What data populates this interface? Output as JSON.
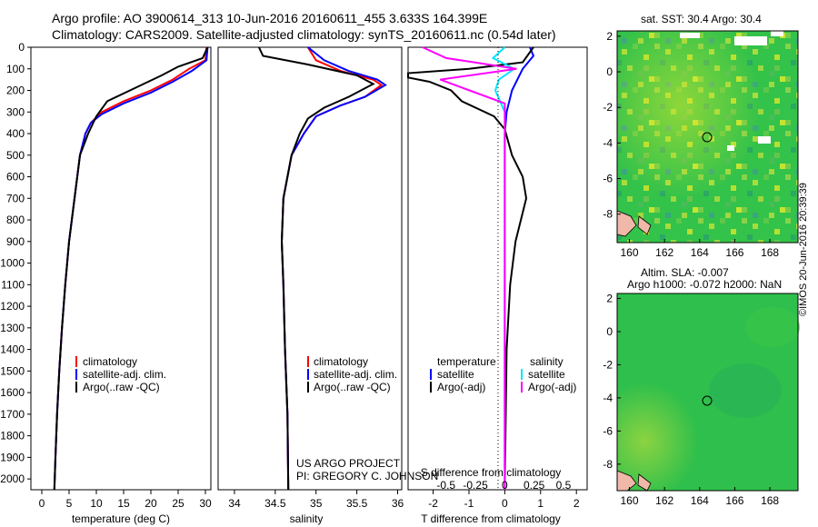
{
  "header": {
    "line1": "Argo profile: AO 3900614_313 10-Jun-2016 20160611_455 3.633S 164.399E",
    "line2": "Climatology: CARS2009. Satellite-adjusted climatology: synTS_20160611.nc (0.54d later)"
  },
  "map_top": {
    "title": "sat. SST: 30.4 Argo: 30.4"
  },
  "map_bottom": {
    "title_1": "Altim. SLA: -0.007",
    "title_2": "Argo h1000: -0.072 h2000: NaN"
  },
  "map_axes": {
    "x_ticks": [
      "160",
      "162",
      "164",
      "166",
      "168"
    ],
    "y_ticks": [
      "2",
      "0",
      "-2",
      "-4",
      "-6",
      "-8"
    ]
  },
  "credit": "©IMOS 20-Jun-2016 20:39:39",
  "project": {
    "line1": "US ARGO PROJECT",
    "line2": "PI: GREGORY C. JOHNSON"
  },
  "depth_ticks": [
    "0",
    "100",
    "200",
    "300",
    "400",
    "500",
    "600",
    "700",
    "800",
    "900",
    "1000",
    "1100",
    "1200",
    "1300",
    "1400",
    "1500",
    "1600",
    "1700",
    "1800",
    "1900",
    "2000"
  ],
  "colors": {
    "climatology": "#ff0000",
    "satellite": "#0000ff",
    "argo": "#000000",
    "sal_satellite": "#00e5ff",
    "sal_argo": "#ff00ff",
    "map_green": "#22c04a"
  },
  "chart_data": [
    {
      "type": "line",
      "xlabel": "temperature (deg C)",
      "ylabel": "",
      "x_ticks": [
        "0",
        "5",
        "10",
        "15",
        "20",
        "25",
        "30"
      ],
      "xlim": [
        -2,
        31
      ],
      "ylim": [
        2050,
        0
      ],
      "legend": [
        "climatology",
        "satellite-adj. clim.",
        "Argo(..raw -QC)"
      ],
      "series": [
        {
          "name": "climatology",
          "points": [
            [
              30.2,
              0
            ],
            [
              30,
              60
            ],
            [
              27,
              100
            ],
            [
              24,
              150
            ],
            [
              20,
              200
            ],
            [
              15,
              250
            ],
            [
              11,
              300
            ],
            [
              9,
              350
            ],
            [
              8,
              400
            ],
            [
              7,
              500
            ],
            [
              6,
              700
            ],
            [
              5,
              900
            ],
            [
              4.3,
              1100
            ],
            [
              3.7,
              1300
            ],
            [
              3.2,
              1500
            ],
            [
              2.8,
              1700
            ],
            [
              2.5,
              1900
            ],
            [
              2.3,
              2050
            ]
          ]
        },
        {
          "name": "satellite-adj. clim.",
          "points": [
            [
              30.4,
              0
            ],
            [
              30.2,
              60
            ],
            [
              27.5,
              110
            ],
            [
              24,
              160
            ],
            [
              20,
              210
            ],
            [
              15,
              260
            ],
            [
              11,
              310
            ],
            [
              9,
              350
            ],
            [
              8,
              400
            ],
            [
              7,
              500
            ],
            [
              6,
              700
            ],
            [
              5,
              900
            ],
            [
              4.3,
              1100
            ],
            [
              3.7,
              1300
            ],
            [
              3.2,
              1500
            ],
            [
              2.8,
              1700
            ],
            [
              2.5,
              1900
            ],
            [
              2.3,
              2050
            ]
          ]
        },
        {
          "name": "Argo(..raw -QC)",
          "points": [
            [
              30.4,
              0
            ],
            [
              29.5,
              50
            ],
            [
              25,
              90
            ],
            [
              22,
              130
            ],
            [
              17,
              190
            ],
            [
              12,
              250
            ],
            [
              10,
              320
            ],
            [
              8.5,
              400
            ],
            [
              7,
              500
            ],
            [
              6,
              700
            ],
            [
              5,
              900
            ],
            [
              4.3,
              1100
            ],
            [
              3.7,
              1300
            ],
            [
              3.2,
              1500
            ],
            [
              2.8,
              1700
            ],
            [
              2.5,
              1900
            ],
            [
              2.3,
              2050
            ]
          ]
        }
      ]
    },
    {
      "type": "line",
      "xlabel": "salinity",
      "x_ticks": [
        "34",
        "34.5",
        "35",
        "35.5",
        "36"
      ],
      "xlim": [
        33.8,
        36.05
      ],
      "ylim": [
        2050,
        0
      ],
      "legend": [
        "climatology",
        "satellite-adj. clim.",
        "Argo(..raw -QC)"
      ],
      "series": [
        {
          "name": "climatology",
          "points": [
            [
              34.9,
              0
            ],
            [
              35,
              60
            ],
            [
              35.3,
              110
            ],
            [
              35.7,
              150
            ],
            [
              35.8,
              175
            ],
            [
              35.6,
              230
            ],
            [
              35.3,
              270
            ],
            [
              35.0,
              320
            ],
            [
              34.85,
              400
            ],
            [
              34.7,
              500
            ],
            [
              34.6,
              700
            ],
            [
              34.58,
              900
            ],
            [
              34.6,
              1100
            ],
            [
              34.62,
              1400
            ],
            [
              34.65,
              1700
            ],
            [
              34.66,
              2050
            ]
          ]
        },
        {
          "name": "satellite-adj. clim.",
          "points": [
            [
              34.9,
              0
            ],
            [
              35.1,
              60
            ],
            [
              35.4,
              110
            ],
            [
              35.75,
              150
            ],
            [
              35.85,
              175
            ],
            [
              35.6,
              230
            ],
            [
              35.3,
              270
            ],
            [
              35.0,
              320
            ],
            [
              34.85,
              400
            ],
            [
              34.7,
              500
            ],
            [
              34.6,
              700
            ],
            [
              34.58,
              900
            ],
            [
              34.6,
              1100
            ],
            [
              34.62,
              1400
            ],
            [
              34.65,
              1700
            ],
            [
              34.66,
              2050
            ]
          ]
        },
        {
          "name": "Argo(..raw -QC)",
          "points": [
            [
              34.3,
              0
            ],
            [
              34.35,
              40
            ],
            [
              34.9,
              80
            ],
            [
              35.5,
              130
            ],
            [
              35.7,
              170
            ],
            [
              35.4,
              230
            ],
            [
              35.1,
              280
            ],
            [
              34.9,
              330
            ],
            [
              34.8,
              400
            ],
            [
              34.7,
              500
            ],
            [
              34.6,
              700
            ],
            [
              34.58,
              900
            ],
            [
              34.6,
              1100
            ],
            [
              34.62,
              1400
            ],
            [
              34.65,
              1700
            ],
            [
              34.66,
              2050
            ]
          ]
        }
      ]
    },
    {
      "type": "line",
      "xlabel": "T difference from climatology",
      "x_ticks": [
        "-2",
        "-1",
        "0",
        "1",
        "2"
      ],
      "xlim": [
        -2.7,
        2.3
      ],
      "secondary_xlabel": "S difference from climatology",
      "secondary_x_ticks": [
        "-0.5",
        "-0.25",
        "0",
        "0.25",
        "0.5"
      ],
      "ylim": [
        2050,
        0
      ],
      "legend_temperature_title": "temperature",
      "legend_salinity_title": "salinity",
      "legend": [
        "satellite",
        "Argo(-adj)",
        "satellite",
        "Argo(-adj)"
      ],
      "series": [
        {
          "name": "satellite",
          "points": [
            [
              0.7,
              0
            ],
            [
              0.8,
              40
            ],
            [
              0.5,
              100
            ],
            [
              0.2,
              200
            ],
            [
              0.05,
              300
            ],
            [
              0,
              400
            ],
            [
              0,
              1000
            ],
            [
              0,
              2050
            ]
          ]
        },
        {
          "name": "Argo(-adj)",
          "points": [
            [
              0.8,
              0
            ],
            [
              0.5,
              70
            ],
            [
              0,
              80
            ],
            [
              -1.0,
              100
            ],
            [
              -2.7,
              120
            ],
            [
              -2.7,
              140
            ],
            [
              -2.1,
              160
            ],
            [
              -1.5,
              200
            ],
            [
              -1.2,
              250
            ],
            [
              -0.3,
              320
            ],
            [
              0,
              380
            ],
            [
              0.2,
              500
            ],
            [
              0.5,
              600
            ],
            [
              0.6,
              700
            ],
            [
              0.3,
              900
            ],
            [
              0.15,
              1100
            ],
            [
              0.05,
              1400
            ],
            [
              0,
              2050
            ]
          ]
        },
        {
          "name": "satellite",
          "points": [
            [
              0,
              0
            ],
            [
              -0.1,
              50
            ],
            [
              0.08,
              100
            ],
            [
              -0.05,
              150
            ],
            [
              -0.08,
              200
            ],
            [
              0,
              300
            ],
            [
              0,
              2050
            ]
          ]
        },
        {
          "name": "Argo(-adj)",
          "points": [
            [
              -0.7,
              0
            ],
            [
              -0.5,
              50
            ],
            [
              0.1,
              100
            ],
            [
              -0.55,
              150
            ],
            [
              -0.3,
              200
            ],
            [
              0,
              260
            ],
            [
              0,
              2050
            ]
          ]
        }
      ]
    }
  ]
}
